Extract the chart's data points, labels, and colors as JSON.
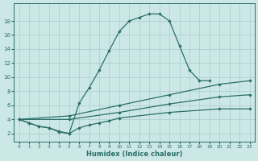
{
  "xlabel": "Humidex (Indice chaleur)",
  "xlim": [
    -0.5,
    23.5
  ],
  "ylim": [
    0.8,
    20.5
  ],
  "yticks": [
    2,
    4,
    6,
    8,
    10,
    12,
    14,
    16,
    18
  ],
  "xticks": [
    0,
    1,
    2,
    3,
    4,
    5,
    6,
    7,
    8,
    9,
    10,
    11,
    12,
    13,
    14,
    15,
    16,
    17,
    18,
    19,
    20,
    21,
    22,
    23
  ],
  "bg": "#cce8e6",
  "grid_color": "#a8ccca",
  "lc": "#2a6e68",
  "curve1_x": [
    0,
    1,
    2,
    3,
    4,
    5,
    6,
    7,
    8,
    9,
    10,
    11,
    12,
    13,
    14,
    15,
    16,
    17,
    18,
    19
  ],
  "curve1_y": [
    4.0,
    3.5,
    3.0,
    2.8,
    2.2,
    2.0,
    6.3,
    8.5,
    11.0,
    13.8,
    16.5,
    18.0,
    18.5,
    19.0,
    19.0,
    18.0,
    14.5,
    11.0,
    9.5,
    9.5
  ],
  "curve2_x": [
    0,
    5,
    10,
    15,
    20,
    23
  ],
  "curve2_y": [
    4.0,
    4.5,
    6.0,
    7.5,
    9.0,
    9.5
  ],
  "curve3_x": [
    0,
    5,
    10,
    15,
    20,
    23
  ],
  "curve3_y": [
    4.0,
    4.0,
    5.0,
    6.2,
    7.2,
    7.5
  ],
  "curve4_x": [
    0,
    1,
    2,
    3,
    4,
    5,
    6,
    7,
    8,
    9,
    10,
    15,
    20,
    23
  ],
  "curve4_y": [
    4.0,
    3.5,
    3.0,
    2.8,
    2.3,
    2.0,
    2.8,
    3.2,
    3.5,
    3.8,
    4.2,
    5.0,
    5.5,
    5.5
  ]
}
